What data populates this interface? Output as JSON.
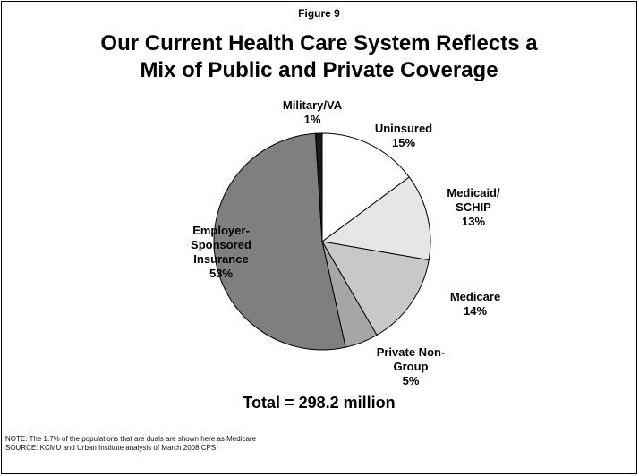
{
  "figure_label": "Figure 9",
  "title_lines": [
    "Our Current Health Care System Reflects a",
    "Mix of Public and Private Coverage"
  ],
  "total": "Total = 298.2 million",
  "notes": [
    "NOTE:  The 1.7% of the populations that are duals are shown here as Medicare",
    "SOURCE: KCMU and Urban Institute analysis of March 2008 CPS."
  ],
  "colors": {
    "uninsured": "#ffffff",
    "medicaid": "#e6e6e6",
    "medicare": "#c8c8c8",
    "private_non_group": "#a6a6a6",
    "employer": "#7f7f7f",
    "military": "#1a1a1a",
    "stroke": "#000000"
  },
  "chart_data": {
    "type": "pie",
    "title": "Our Current Health Care System Reflects a Mix of Public and Private Coverage",
    "slices": [
      {
        "label": "Uninsured\n15%",
        "value": 15,
        "color": "#ffffff"
      },
      {
        "label": "Medicaid/\nSCHIP\n13%",
        "value": 13,
        "color": "#e6e6e6"
      },
      {
        "label": "Medicare\n14%",
        "value": 14,
        "color": "#c8c8c8"
      },
      {
        "label": "Private Non-\nGroup\n5%",
        "value": 5,
        "color": "#a6a6a6"
      },
      {
        "label": "Employer-\nSponsored\nInsurance\n53%",
        "value": 53,
        "color": "#7f7f7f"
      },
      {
        "label": "Military/VA\n1%",
        "value": 1,
        "color": "#1a1a1a"
      }
    ]
  }
}
